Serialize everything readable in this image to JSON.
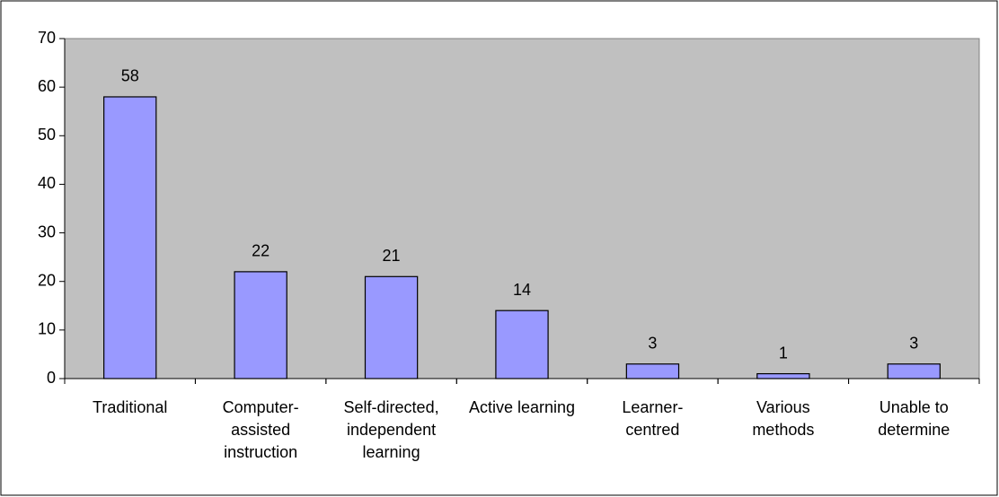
{
  "chart_data": {
    "type": "bar",
    "categories": [
      "Traditional",
      "Computer-assisted instruction",
      "Self-directed, independent learning",
      "Active learning",
      "Learner-centred",
      "Various methods",
      "Unable to determine"
    ],
    "values": [
      58,
      22,
      21,
      14,
      3,
      1,
      3
    ],
    "color": "#9999ff",
    "ylim": [
      0,
      70
    ],
    "yticks": [
      0,
      10,
      20,
      30,
      40,
      50,
      60,
      70
    ],
    "grid": false
  }
}
